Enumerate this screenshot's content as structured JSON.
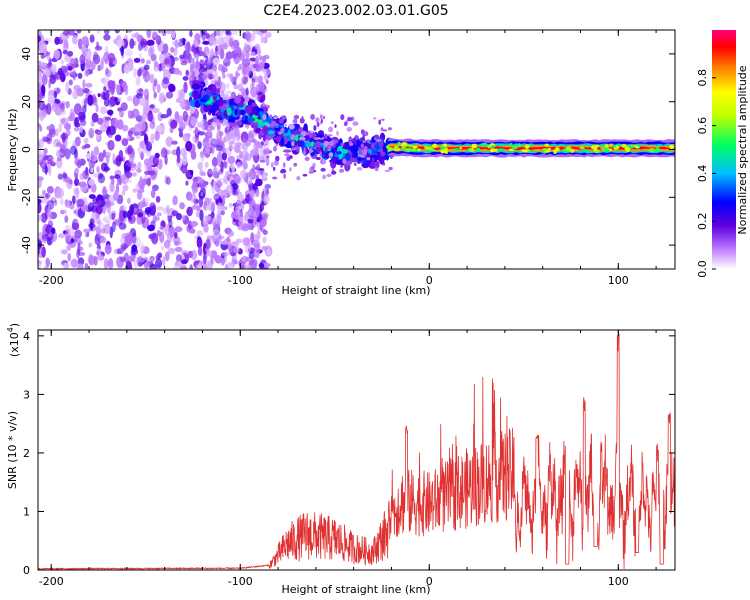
{
  "title": "C2E4.2023.002.03.01.G05",
  "chart_data": [
    {
      "type": "heatmap",
      "xlabel": "Height of straight line (km)",
      "ylabel": "Frequency (Hz)",
      "xlim": [
        -207,
        130
      ],
      "ylim": [
        -50,
        50
      ],
      "xticks": [
        -200,
        -100,
        0,
        100
      ],
      "yticks": [
        -40,
        -20,
        0,
        20,
        40
      ],
      "xtick_labels": [
        "-200",
        "-100",
        "0",
        "100"
      ],
      "ytick_labels": [
        "-40",
        "-20",
        "0",
        "20",
        "40"
      ],
      "colorbar": {
        "label": "Normalized spectral amplitude",
        "range": [
          0,
          1
        ],
        "ticks": [
          "0.0",
          "0.2",
          "0.4",
          "0.6",
          "0.8"
        ],
        "colors": [
          "#ffffff",
          "#8a2be2",
          "#0000ff",
          "#00ffff",
          "#00ff00",
          "#ffff00",
          "#ff8000",
          "#ff0000",
          "#ff0080"
        ]
      },
      "noise_region_x": [
        -207,
        -90
      ],
      "ridge": [
        {
          "x": -120,
          "y": 22
        },
        {
          "x": -110,
          "y": 18
        },
        {
          "x": -95,
          "y": 15
        },
        {
          "x": -85,
          "y": 10
        },
        {
          "x": -75,
          "y": 6
        },
        {
          "x": -65,
          "y": 4
        },
        {
          "x": -55,
          "y": 1
        },
        {
          "x": -45,
          "y": -1
        },
        {
          "x": -35,
          "y": -2
        },
        {
          "x": -28,
          "y": 0
        },
        {
          "x": -20,
          "y": 1
        },
        {
          "x": 0,
          "y": 0.5
        },
        {
          "x": 130,
          "y": 0.5
        }
      ]
    },
    {
      "type": "line",
      "xlabel": "Height of straight line (km)",
      "ylabel": "SNR (10 * v/v)",
      "y_multiplier": "(x10",
      "y_multiplier_exp": "4",
      "y_multiplier_close": ")",
      "xlim": [
        -207,
        130
      ],
      "ylim": [
        0,
        4.1
      ],
      "xticks": [
        -200,
        -100,
        0,
        100
      ],
      "yticks": [
        0,
        1,
        2,
        3,
        4
      ],
      "xtick_labels": [
        "-200",
        "-100",
        "0",
        "100"
      ],
      "ytick_labels": [
        "0",
        "1",
        "2",
        "3",
        "4"
      ],
      "color": "#e03030",
      "envelope": [
        {
          "x": -207,
          "y": 0.02
        },
        {
          "x": -100,
          "y": 0.03
        },
        {
          "x": -85,
          "y": 0.08
        },
        {
          "x": -75,
          "y": 0.6
        },
        {
          "x": -65,
          "y": 0.8
        },
        {
          "x": -50,
          "y": 0.7
        },
        {
          "x": -40,
          "y": 0.5
        },
        {
          "x": -30,
          "y": 0.4
        },
        {
          "x": -22,
          "y": 0.9
        },
        {
          "x": -15,
          "y": 1.3
        },
        {
          "x": 0,
          "y": 1.25
        },
        {
          "x": 10,
          "y": 1.4
        },
        {
          "x": 20,
          "y": 1.55
        },
        {
          "x": 35,
          "y": 1.75
        },
        {
          "x": 50,
          "y": 1.85
        },
        {
          "x": 60,
          "y": 2.0
        },
        {
          "x": 70,
          "y": 2.1
        },
        {
          "x": 80,
          "y": 2.0
        },
        {
          "x": 90,
          "y": 2.2
        },
        {
          "x": 100,
          "y": 2.0
        },
        {
          "x": 110,
          "y": 1.8
        },
        {
          "x": 120,
          "y": 2.0
        },
        {
          "x": 130,
          "y": 2.3
        }
      ],
      "peaks": [
        {
          "x": -12,
          "y": 2.5
        },
        {
          "x": 57,
          "y": 2.4
        },
        {
          "x": 82,
          "y": 2.95
        },
        {
          "x": 100,
          "y": 4.1
        },
        {
          "x": 127,
          "y": 2.7
        }
      ],
      "troughs": [
        {
          "x": 73,
          "y": 0.1
        },
        {
          "x": 88,
          "y": 0.4
        },
        {
          "x": 110,
          "y": 0.3
        },
        {
          "x": 123,
          "y": 0.1
        }
      ]
    }
  ]
}
